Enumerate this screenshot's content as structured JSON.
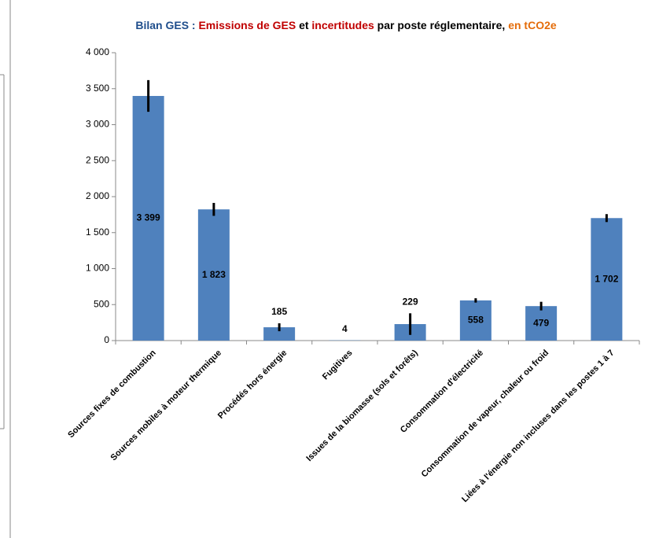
{
  "chart_data": {
    "type": "bar",
    "title_parts": [
      {
        "text": "Bilan GES : ",
        "color": "#1f4e8c"
      },
      {
        "text": "Emissions de GES",
        "color": "#c00000"
      },
      {
        "text": " et ",
        "color": "#000000"
      },
      {
        "text": "incertitudes",
        "color": "#c00000"
      },
      {
        "text": " par poste réglementaire, ",
        "color": "#000000"
      },
      {
        "text": "en tCO2e",
        "color": "#e46c0a"
      }
    ],
    "categories": [
      "Sources fixes de combustion",
      "Sources mobiles à moteur thermique",
      "Procédés hors énergie",
      "Fugitives",
      "Issues de la biomasse (sols et forêts)",
      "Consommation d'électricité",
      "Consommation de vapeur, chaleur ou froid",
      "Liées à l'énergie non incluses dans les postes 1 à 7"
    ],
    "values": [
      3399,
      1823,
      185,
      4,
      229,
      558,
      479,
      1702
    ],
    "value_labels": [
      "3 399",
      "1 823",
      "185",
      "4",
      "229",
      "558",
      "479",
      "1 702"
    ],
    "errors": [
      220,
      90,
      55,
      0,
      150,
      30,
      60,
      55
    ],
    "color": "#4f81bd",
    "ylim": [
      0,
      4000
    ],
    "yticks": [
      0,
      500,
      {
        "value": 1000,
        "label": "1 000"
      },
      {
        "value": 1500,
        "label": "1 500"
      },
      {
        "value": 2000,
        "label": "2 000"
      },
      {
        "value": 2500,
        "label": "2 500"
      },
      {
        "value": 3000,
        "label": "3 000"
      },
      {
        "value": 3500,
        "label": "3 500"
      },
      {
        "value": 4000,
        "label": "4 000"
      }
    ],
    "grid": false
  }
}
